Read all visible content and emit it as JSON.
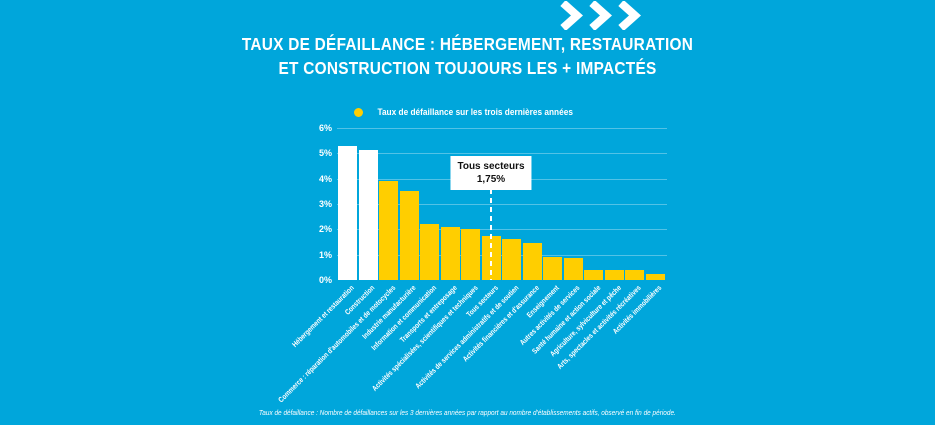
{
  "palette": {
    "background": "#00A6DB",
    "bar_yellow": "#FFCE00",
    "bar_highlight": "#FFFFFF",
    "gridline": "rgba(255,255,255,0.32)",
    "text": "#FFFFFF",
    "annotation_text": "#111111"
  },
  "header": {
    "title_line1": "TAUX DE DÉFAILLANCE : HÉBERGEMENT, RESTAURATION",
    "title_line2": "ET CONSTRUCTION TOUJOURS LES + IMPACTÉS"
  },
  "legend": {
    "label": "Taux de défaillance sur les trois dernières années"
  },
  "annotation": {
    "line1": "Tous secteurs",
    "line2": "1,75%"
  },
  "footnote": "Taux de défaillance : Nombre de défaillances sur les 3 dernières années par rapport au nombre d'établissements actifs, observé en fin de période.",
  "chart_data": {
    "type": "bar",
    "title": "Taux de défaillance : hébergement, restauration et construction toujours les + impactés",
    "legend_entries": [
      "Taux de défaillance sur les trois dernières années"
    ],
    "categories": [
      "Hébergement et restauration",
      "Construction",
      "Commerce : réparation d'automobiles et de motocycles",
      "Industrie manufacturière",
      "Information et communication",
      "Transports et entreposage",
      "Activités spécialisées, scientifiques et techniques",
      "Tous secteurs",
      "Activités de services administratifs et de soutien",
      "Activités financières et d'assurance",
      "Enseignement",
      "Autres activités de services",
      "Santé humaine et action sociale",
      "Agriculture, sylviculture et pêche",
      "Arts, spectacles et activités récréatives",
      "Activités immobilières"
    ],
    "values": [
      5.3,
      5.15,
      3.9,
      3.5,
      2.2,
      2.1,
      2.0,
      1.75,
      1.6,
      1.45,
      0.9,
      0.85,
      0.4,
      0.4,
      0.4,
      0.25
    ],
    "highlighted_categories": [
      "Hébergement et restauration",
      "Construction"
    ],
    "annotation": {
      "category": "Tous secteurs",
      "label": "Tous secteurs",
      "value_label": "1,75%"
    },
    "xlabel": "",
    "ylabel": "",
    "ylim": [
      0,
      6
    ],
    "ytick_labels": [
      "0%",
      "1%",
      "2%",
      "3%",
      "4%",
      "5%",
      "6%"
    ],
    "grid": true,
    "legend_position": "top"
  }
}
